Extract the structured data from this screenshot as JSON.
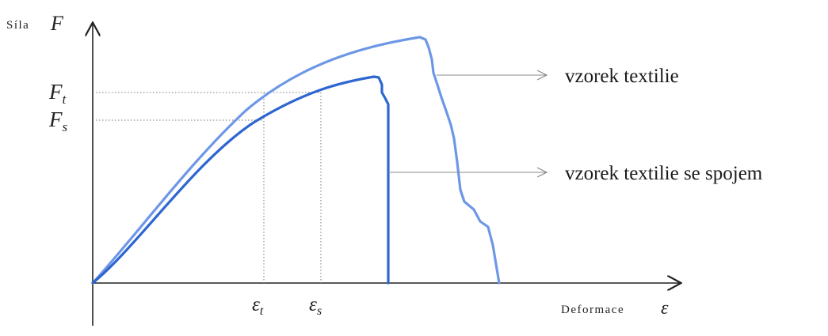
{
  "colors": {
    "curve_textile": "#6d97e6",
    "curve_textile_joint": "#2d66d1",
    "axis": "#222222",
    "guide": "#777777"
  },
  "y_axis": {
    "label_text": "Síla",
    "label_symbol": "F",
    "ticks": [
      {
        "symbol": "F",
        "subscript": "t"
      },
      {
        "symbol": "F",
        "subscript": "s"
      }
    ]
  },
  "x_axis": {
    "label_text": "Deformace",
    "label_symbol": "ε",
    "ticks": [
      {
        "symbol": "ε",
        "subscript": "t"
      },
      {
        "symbol": "ε",
        "subscript": "s"
      }
    ]
  },
  "legend": {
    "textile": "vzorek textilie",
    "textile_joint": "vzorek textilie se spojem"
  }
}
